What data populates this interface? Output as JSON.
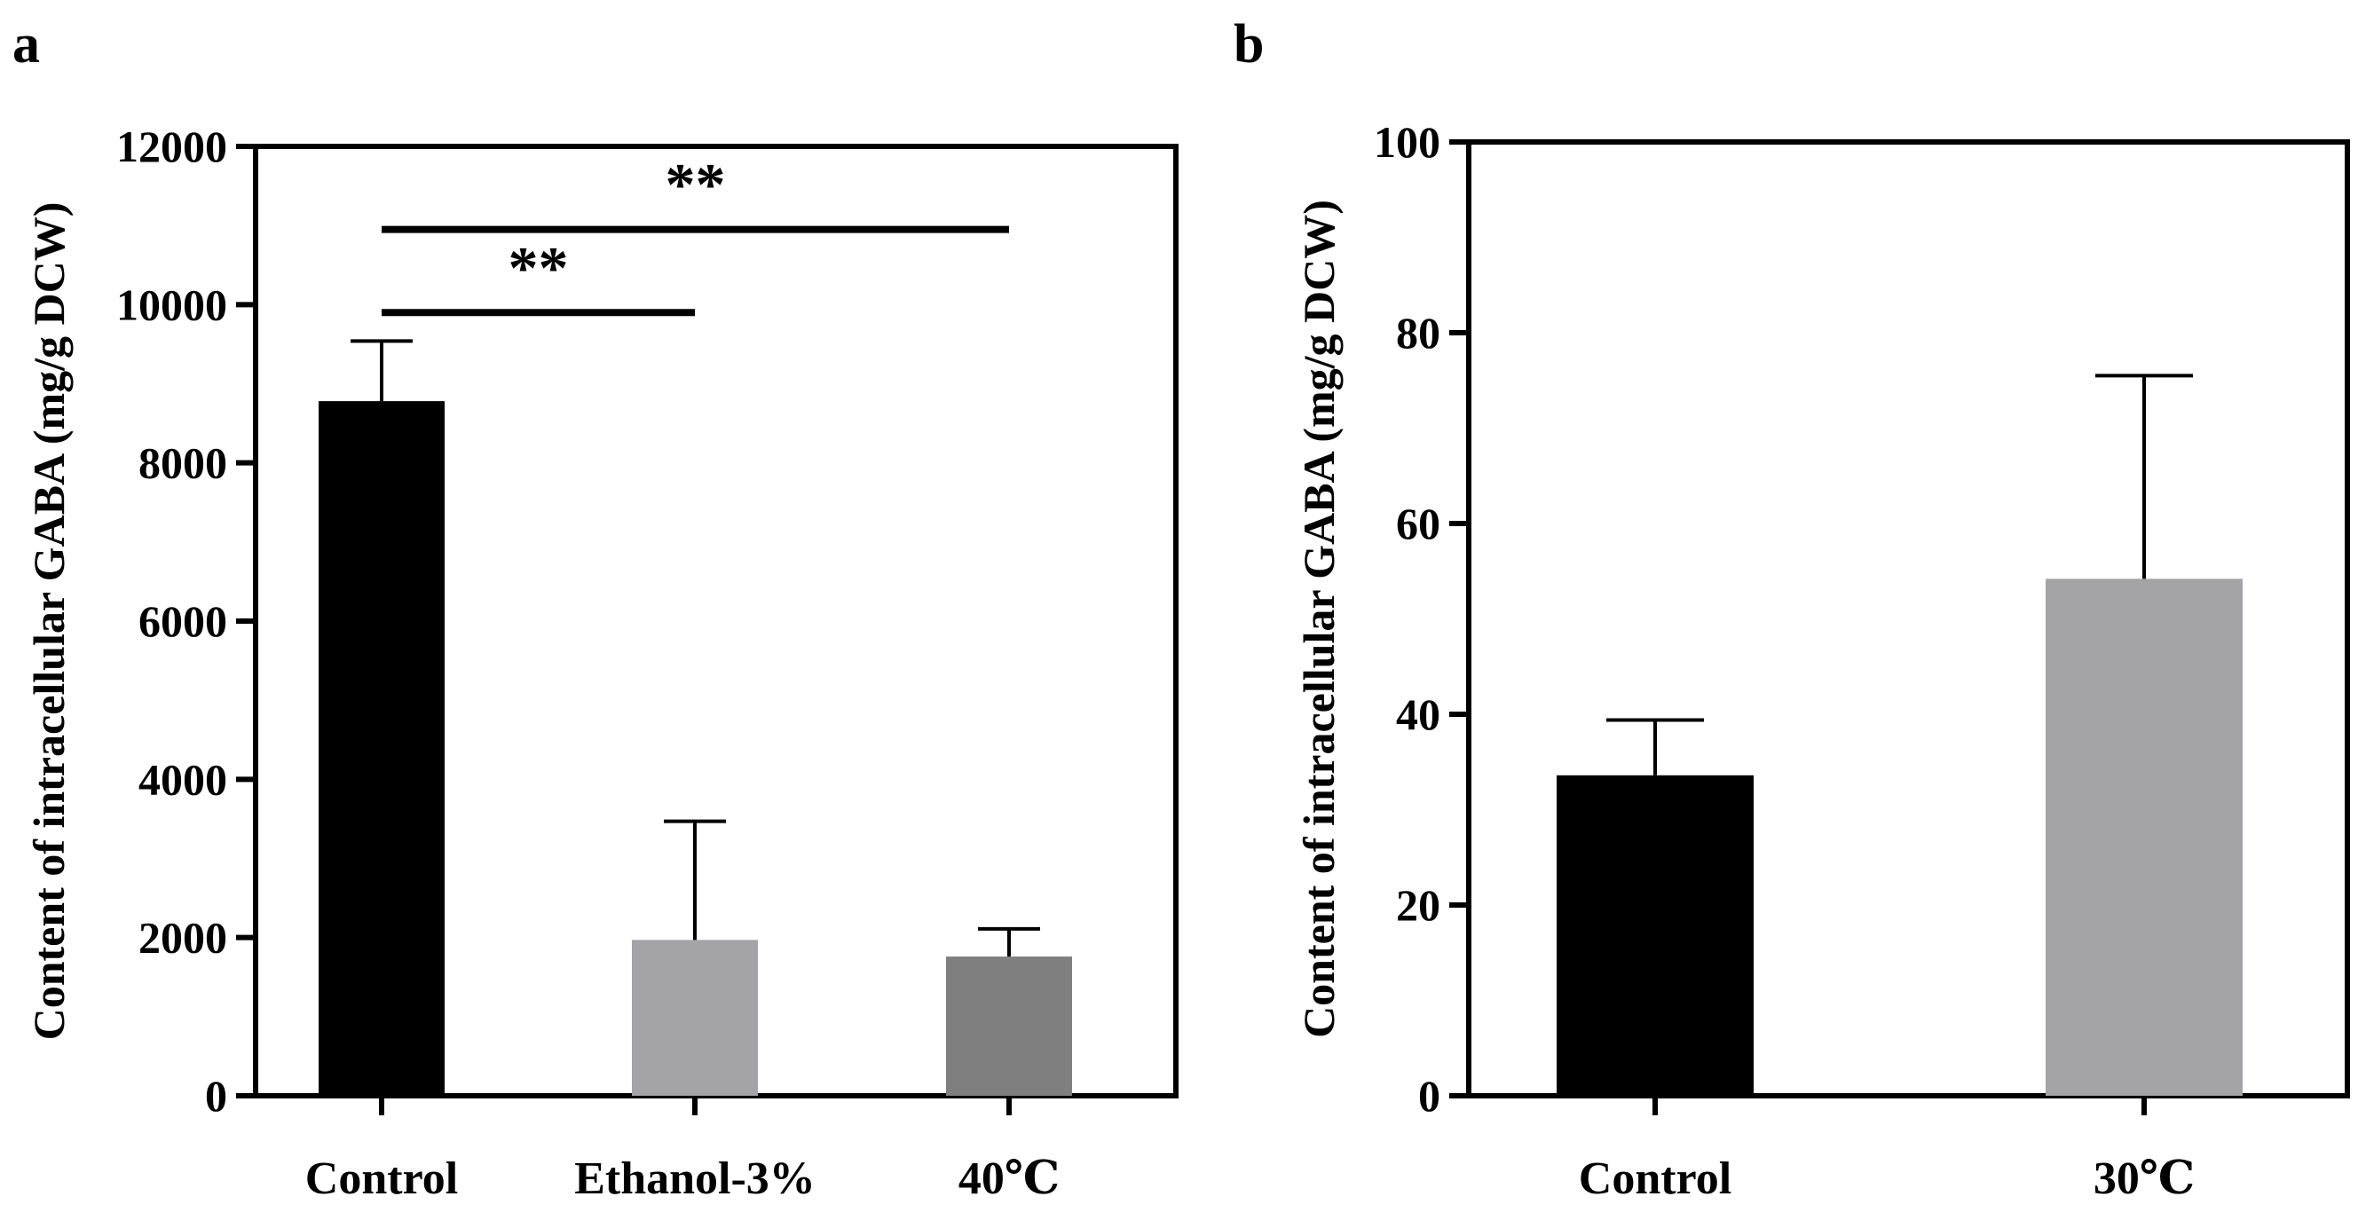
{
  "chart_data": [
    {
      "type": "bar",
      "panel": "a",
      "title": "",
      "xlabel": "",
      "ylabel": "Content of intracellular GABA (mg/g DCW)",
      "ylim": [
        0,
        12000
      ],
      "yticks": [
        0,
        2000,
        4000,
        6000,
        8000,
        10000,
        12000
      ],
      "grid": false,
      "legend": "none",
      "categories": [
        "Control",
        "Ethanol-3%",
        "40℃"
      ],
      "values": [
        8780,
        1970,
        1760
      ],
      "errors": [
        760,
        1500,
        350
      ],
      "colors": [
        "#000000",
        "#a4a4a8",
        "#7f7f7f"
      ],
      "significance": [
        {
          "from": 0,
          "to": 1,
          "label": "**",
          "y": 9900
        },
        {
          "from": 0,
          "to": 2,
          "label": "**",
          "y": 10950
        }
      ]
    },
    {
      "type": "bar",
      "panel": "b",
      "title": "",
      "xlabel": "",
      "ylabel": "Content of intracellular GABA (mg/g DCW)",
      "ylim": [
        0,
        100
      ],
      "yticks": [
        0,
        20,
        40,
        60,
        80,
        100
      ],
      "grid": false,
      "legend": "none",
      "categories": [
        "Control",
        "30℃"
      ],
      "values": [
        33.6,
        54.2
      ],
      "errors": [
        5.8,
        21.3
      ],
      "colors": [
        "#000000",
        "#a4a4a8"
      ],
      "significance": []
    }
  ]
}
